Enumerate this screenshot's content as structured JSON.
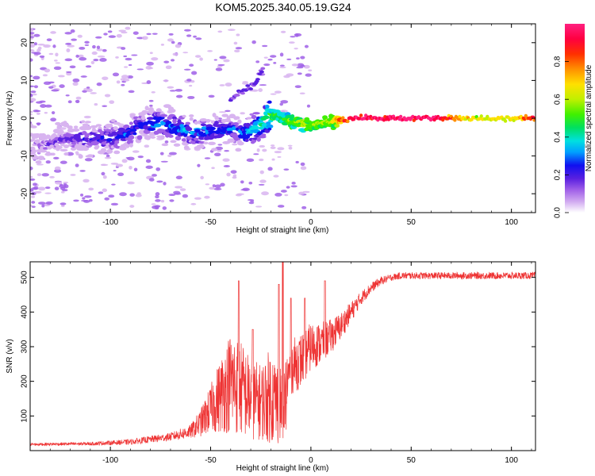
{
  "chart_data": [
    {
      "type": "heatmap",
      "title": "KOM5.2025.340.05.19.G24",
      "xlabel": "Height of straight line (km)",
      "ylabel": "Frequency (Hz)",
      "xlim": [
        -140,
        112
      ],
      "ylim": [
        -25,
        25
      ],
      "xticks": [
        -100,
        -50,
        0,
        50,
        100
      ],
      "yticks": [
        -20,
        -10,
        0,
        10,
        20
      ],
      "colorbar": {
        "label": "Normalized spectral amplitude",
        "range": [
          0,
          1
        ],
        "ticks": [
          "0.0",
          "0.2",
          "0.4",
          "0.6",
          "0.8"
        ],
        "colors": [
          "#ffffff",
          "#d8b4f0",
          "#a060e8",
          "#5a20e0",
          "#1010f0",
          "#00a0ff",
          "#00e0e0",
          "#00e060",
          "#40f000",
          "#c0f000",
          "#ffe000",
          "#ff9000",
          "#ff3000",
          "#ff0040",
          "#ff2080"
        ]
      },
      "ridge": {
        "x": [
          -140,
          -125,
          -110,
          -95,
          -85,
          -75,
          -65,
          -55,
          -45,
          -38,
          -32,
          -26,
          -22,
          -18,
          -14,
          -10,
          -6,
          -2,
          2,
          6,
          10,
          15,
          20,
          30,
          40,
          60,
          80,
          100,
          112
        ],
        "y": [
          -8,
          -6,
          -5,
          -5,
          -2,
          -1,
          -3,
          -4,
          -3,
          -3,
          -4,
          -2,
          0,
          1,
          0,
          -1,
          -1,
          -2,
          -2,
          -1,
          -1,
          -0.5,
          0,
          0,
          0,
          0,
          0,
          0,
          0
        ],
        "amplitude": [
          0.15,
          0.2,
          0.25,
          0.3,
          0.3,
          0.35,
          0.35,
          0.35,
          0.3,
          0.3,
          0.35,
          0.45,
          0.55,
          0.55,
          0.5,
          0.6,
          0.6,
          0.65,
          0.6,
          0.65,
          0.65,
          0.8,
          0.95,
          1.0,
          1.0,
          1.0,
          0.7,
          0.7,
          0.9
        ]
      },
      "branch": {
        "x": [
          -40,
          -35,
          -30,
          -27,
          -24
        ],
        "y": [
          5,
          7,
          8,
          10,
          13
        ]
      }
    },
    {
      "type": "line",
      "title": "",
      "xlabel": "Height of straight line (km)",
      "ylabel": "SNR (v/v)",
      "xlim": [
        -140,
        112
      ],
      "ylim": [
        0,
        545
      ],
      "xticks": [
        -100,
        -50,
        0,
        50,
        100
      ],
      "yticks": [
        100,
        200,
        300,
        400,
        500
      ],
      "series": [
        {
          "name": "SNR",
          "color": "#ee3333",
          "envelope_x": [
            -140,
            -110,
            -90,
            -70,
            -60,
            -55,
            -50,
            -45,
            -40,
            -35,
            -30,
            -25,
            -20,
            -15,
            -10,
            -5,
            0,
            5,
            10,
            15,
            20,
            25,
            30,
            35,
            40,
            45,
            50,
            60,
            80,
            100,
            112
          ],
          "envelope_y": [
            18,
            20,
            25,
            40,
            55,
            80,
            120,
            160,
            200,
            180,
            150,
            140,
            160,
            130,
            240,
            260,
            300,
            310,
            330,
            360,
            400,
            440,
            470,
            490,
            500,
            505,
            505,
            505,
            505,
            505,
            505
          ],
          "noise_amplitude": [
            4,
            5,
            8,
            12,
            20,
            40,
            70,
            110,
            150,
            140,
            120,
            110,
            140,
            120,
            80,
            80,
            70,
            60,
            50,
            40,
            30,
            20,
            15,
            12,
            10,
            10,
            10,
            10,
            10,
            10,
            10
          ],
          "peaks": [
            {
              "x": -36,
              "y": 490
            },
            {
              "x": -29,
              "y": 350
            },
            {
              "x": -14,
              "y": 545
            },
            {
              "x": -16,
              "y": 480
            },
            {
              "x": -10,
              "y": 440
            },
            {
              "x": -3,
              "y": 440
            },
            {
              "x": 7,
              "y": 490
            }
          ]
        }
      ]
    }
  ]
}
